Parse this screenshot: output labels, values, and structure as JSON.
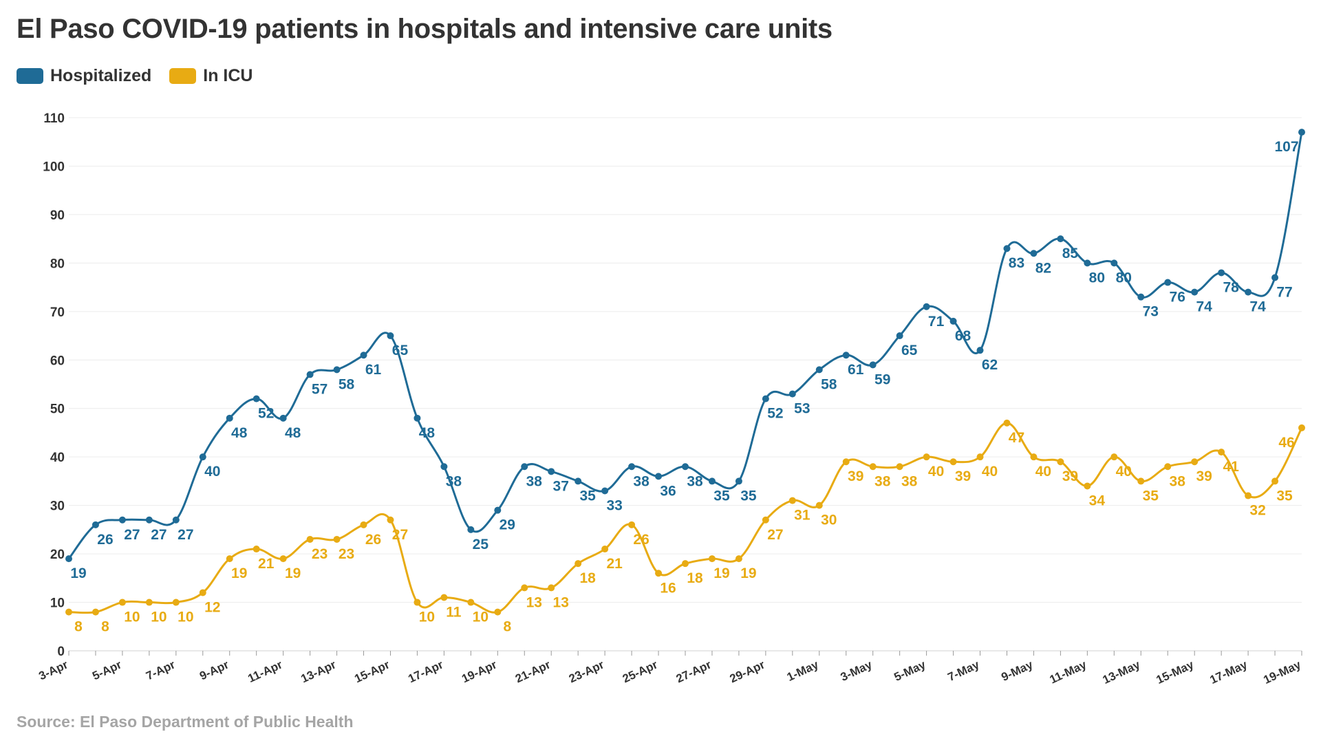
{
  "title": "El Paso COVID-19 patients in hospitals and intensive care units",
  "source": "Source: El Paso Department of Public Health",
  "chart_data": {
    "type": "line",
    "title": "El Paso COVID-19 patients in hospitals and intensive care units",
    "xlabel": "",
    "ylabel": "",
    "ylim": [
      0,
      110
    ],
    "yticks": [
      0,
      10,
      20,
      30,
      40,
      50,
      60,
      70,
      80,
      90,
      100,
      110
    ],
    "grid": true,
    "legend_position": "top-left",
    "x": [
      "3-Apr",
      "4-Apr",
      "5-Apr",
      "6-Apr",
      "7-Apr",
      "8-Apr",
      "9-Apr",
      "10-Apr",
      "11-Apr",
      "12-Apr",
      "13-Apr",
      "14-Apr",
      "15-Apr",
      "16-Apr",
      "17-Apr",
      "18-Apr",
      "19-Apr",
      "20-Apr",
      "21-Apr",
      "22-Apr",
      "23-Apr",
      "24-Apr",
      "25-Apr",
      "26-Apr",
      "27-Apr",
      "28-Apr",
      "29-Apr",
      "30-Apr",
      "1-May",
      "2-May",
      "3-May",
      "4-May",
      "5-May",
      "6-May",
      "7-May",
      "8-May",
      "9-May",
      "10-May",
      "11-May",
      "12-May",
      "13-May",
      "14-May",
      "15-May",
      "16-May",
      "17-May",
      "18-May",
      "19-May"
    ],
    "xtick_labels": [
      "3-Apr",
      "5-Apr",
      "7-Apr",
      "9-Apr",
      "11-Apr",
      "13-Apr",
      "15-Apr",
      "17-Apr",
      "19-Apr",
      "21-Apr",
      "23-Apr",
      "25-Apr",
      "27-Apr",
      "29-Apr",
      "1-May",
      "3-May",
      "5-May",
      "7-May",
      "9-May",
      "11-May",
      "13-May",
      "15-May",
      "17-May",
      "19-May"
    ],
    "series": [
      {
        "name": "Hospitalized",
        "color": "#1f6b96",
        "values": [
          19,
          26,
          27,
          27,
          27,
          40,
          48,
          52,
          48,
          57,
          58,
          61,
          65,
          48,
          38,
          25,
          29,
          38,
          37,
          35,
          33,
          38,
          36,
          38,
          35,
          35,
          52,
          53,
          58,
          61,
          59,
          65,
          71,
          68,
          62,
          83,
          82,
          85,
          80,
          80,
          73,
          76,
          74,
          78,
          74,
          77,
          107
        ]
      },
      {
        "name": "In ICU",
        "color": "#e8ab13",
        "values": [
          8,
          8,
          10,
          10,
          10,
          12,
          19,
          21,
          19,
          23,
          23,
          26,
          27,
          10,
          11,
          10,
          8,
          13,
          13,
          18,
          21,
          26,
          16,
          18,
          19,
          19,
          27,
          31,
          30,
          39,
          38,
          38,
          40,
          39,
          40,
          47,
          40,
          39,
          34,
          40,
          35,
          38,
          39,
          41,
          32,
          35,
          46
        ]
      }
    ]
  }
}
